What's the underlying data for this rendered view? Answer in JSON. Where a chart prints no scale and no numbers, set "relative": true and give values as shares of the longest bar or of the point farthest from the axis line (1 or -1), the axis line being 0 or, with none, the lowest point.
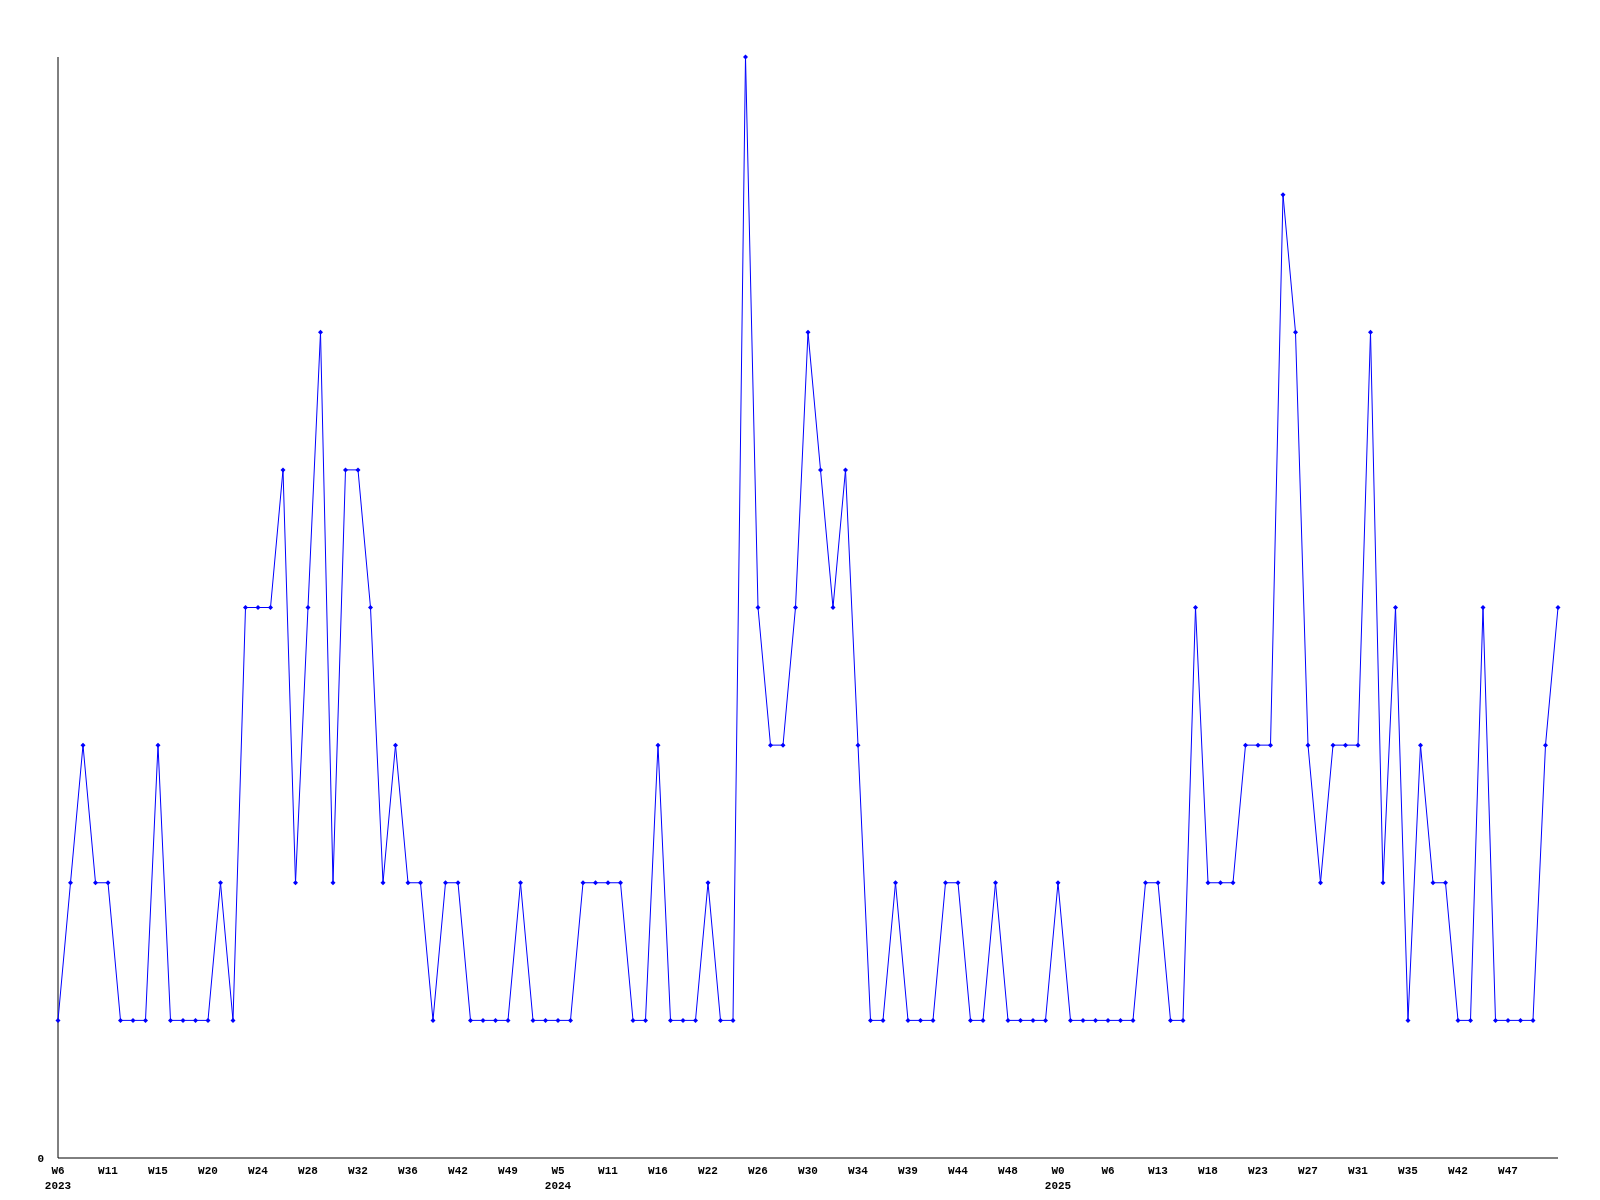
{
  "chart_data": {
    "type": "line",
    "relative": true,
    "marker": "diamond",
    "annotations": [
      "0"
    ],
    "categories": [
      "W6\n2023",
      null,
      null,
      null,
      "W11",
      null,
      null,
      null,
      "W15",
      null,
      null,
      null,
      "W20",
      null,
      null,
      null,
      "W24",
      null,
      null,
      null,
      "W28",
      null,
      null,
      null,
      "W32",
      null,
      null,
      null,
      "W36",
      null,
      null,
      null,
      "W42",
      null,
      null,
      null,
      "W49",
      null,
      null,
      null,
      "W5\n2024",
      null,
      null,
      null,
      "W11",
      null,
      null,
      null,
      "W16",
      null,
      null,
      null,
      "W22",
      null,
      null,
      null,
      "W26",
      null,
      null,
      null,
      "W30",
      null,
      null,
      null,
      "W34",
      null,
      null,
      null,
      "W39",
      null,
      null,
      null,
      "W44",
      null,
      null,
      null,
      "W48",
      null,
      null,
      null,
      "W0\n2025",
      null,
      null,
      null,
      "W6",
      null,
      null,
      null,
      "W13",
      null,
      null,
      null,
      "W18",
      null,
      null,
      null,
      "W23",
      null,
      null,
      null,
      "W27",
      null,
      null,
      null,
      "W31",
      null,
      null,
      null,
      "W35",
      null,
      null,
      null,
      "W42",
      null,
      null,
      null,
      "W47",
      null,
      null,
      null,
      null
    ],
    "series": [
      {
        "color": "#0000ff",
        "values": [
          0.125,
          0.25,
          0.375,
          0.25,
          0.25,
          0.125,
          0.125,
          0.125,
          0.375,
          0.125,
          0.125,
          0.125,
          0.125,
          0.25,
          0.125,
          0.5,
          0.5,
          0.5,
          0.625,
          0.25,
          0.5,
          0.75,
          0.25,
          0.625,
          0.625,
          0.5,
          0.25,
          0.375,
          0.25,
          0.25,
          0.125,
          0.25,
          0.25,
          0.125,
          0.125,
          0.125,
          0.125,
          0.25,
          0.125,
          0.125,
          0.125,
          0.125,
          0.25,
          0.25,
          0.25,
          0.25,
          0.125,
          0.125,
          0.375,
          0.125,
          0.125,
          0.125,
          0.25,
          0.125,
          0.125,
          1,
          0.5,
          0.375,
          0.375,
          0.5,
          0.75,
          0.625,
          0.5,
          0.625,
          0.375,
          0.125,
          0.125,
          0.25,
          0.125,
          0.125,
          0.125,
          0.25,
          0.25,
          0.125,
          0.125,
          0.25,
          0.125,
          0.125,
          0.125,
          0.125,
          0.25,
          0.125,
          0.125,
          0.125,
          0.125,
          0.125,
          0.125,
          0.25,
          0.25,
          0.125,
          0.125,
          0.5,
          0.25,
          0.25,
          0.25,
          0.375,
          0.375,
          0.375,
          0.875,
          0.75,
          0.375,
          0.25,
          0.375,
          0.375,
          0.375,
          0.75,
          0.25,
          0.5,
          0.125,
          0.375,
          0.25,
          0.25,
          0.125,
          0.125,
          0.5,
          0.125,
          0.125,
          0.125,
          0.125,
          0.375,
          0.5
        ]
      }
    ]
  }
}
